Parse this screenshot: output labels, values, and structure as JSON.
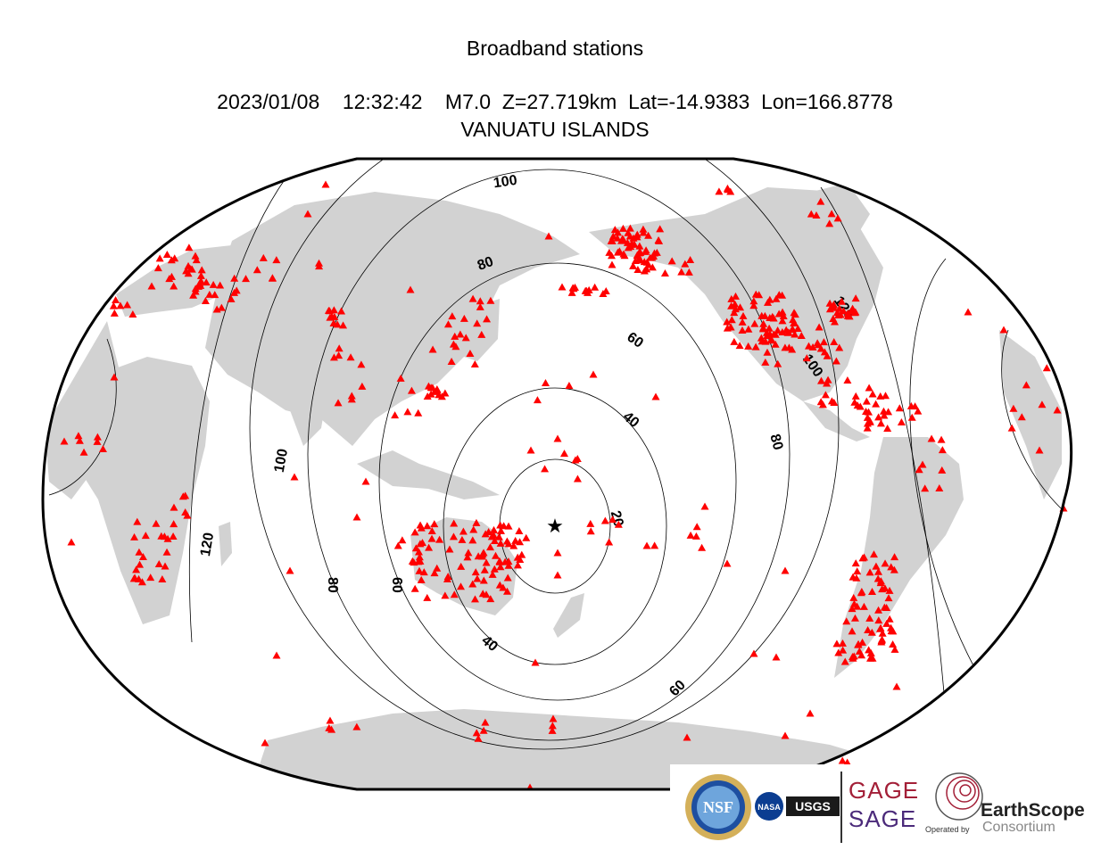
{
  "header": {
    "title": "Broadband stations",
    "event_line": "2023/01/08    12:32:42    M7.0  Z=27.719km  Lat=-14.9383  Lon=166.8778",
    "region": "VANUATU ISLANDS"
  },
  "map": {
    "projection": "Winkel-like global, centered on the Pacific",
    "colors": {
      "ocean": "#ffffff",
      "land": "#d2d2d2",
      "station": "#ff0000",
      "contour": "#000000"
    },
    "epicenter": {
      "lat": -14.9383,
      "lon": 166.8778,
      "symbol": "star"
    },
    "distance_contours_deg": [
      20,
      40,
      60,
      80,
      100,
      120
    ],
    "contour_labels": [
      "100",
      "80",
      "60",
      "40",
      "20",
      "80",
      "100",
      "120",
      "100",
      "120",
      "80",
      "60",
      "40",
      "60"
    ],
    "station_symbol": "triangle"
  },
  "logos": {
    "nsf": "NSF",
    "nasa": "NASA",
    "usgs": "USGS",
    "gage": "GAGE",
    "sage": "SAGE",
    "operated_by": "Operated by",
    "earthscope": "EarthScope",
    "consortium": "Consortium"
  }
}
